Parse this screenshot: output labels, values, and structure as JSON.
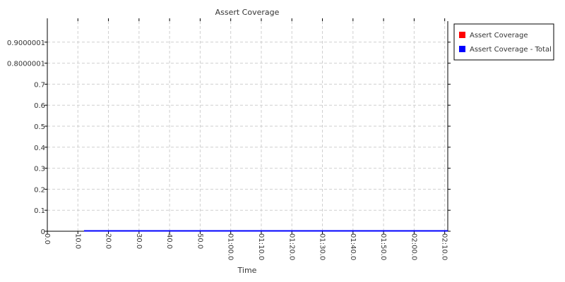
{
  "chart_data": {
    "type": "line",
    "title": "Assert Coverage",
    "xlabel": "Time",
    "ylabel": "",
    "x_ticks": [
      "0.0",
      "10.0",
      "20.0",
      "30.0",
      "40.0",
      "50.0",
      "01:00.0",
      "01:10.0",
      "01:20.0",
      "01:30.0",
      "01:40.0",
      "01:50.0",
      "02:00.0",
      "02:10.0"
    ],
    "x_tick_values": [
      0,
      10,
      20,
      30,
      40,
      50,
      60,
      70,
      80,
      90,
      100,
      110,
      120,
      130
    ],
    "xlim": [
      0,
      131
    ],
    "y_ticks": [
      "0",
      "0.1",
      "0.2",
      "0.3",
      "0.4",
      "0.5",
      "0.6",
      "0.7",
      "0.8000001",
      "0.9000001"
    ],
    "y_tick_values": [
      0,
      0.1,
      0.2,
      0.3,
      0.4,
      0.5,
      0.6,
      0.7,
      0.8000001,
      0.9000001
    ],
    "ylim": [
      0,
      1.0
    ],
    "grid": true,
    "legend_position": "top-right outside",
    "series": [
      {
        "name": "Assert Coverage",
        "color": "#ff0000",
        "x": [
          12,
          131
        ],
        "y": [
          0,
          0
        ]
      },
      {
        "name": "Assert Coverage - Total",
        "color": "#0000ff",
        "x": [
          12,
          131
        ],
        "y": [
          0,
          0
        ]
      }
    ]
  }
}
